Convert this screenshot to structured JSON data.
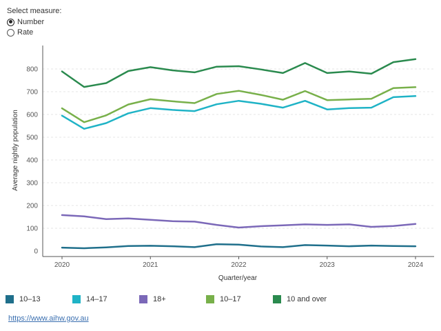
{
  "controls": {
    "title": "Select measure:",
    "options": [
      {
        "label": "Number",
        "checked": true
      },
      {
        "label": "Rate",
        "checked": false
      }
    ]
  },
  "chart_data": {
    "type": "line",
    "title": "",
    "xlabel": "Quarter/year",
    "ylabel": "Average nightly population",
    "xlim": [
      2019.75,
      2024.1
    ],
    "ylim": [
      0,
      900
    ],
    "yticks": [
      0,
      100,
      200,
      300,
      400,
      500,
      600,
      700,
      800
    ],
    "xticks": [
      2020,
      2021,
      2022,
      2023,
      2024
    ],
    "x": [
      2020.0,
      2020.25,
      2020.5,
      2020.75,
      2021.0,
      2021.25,
      2021.5,
      2021.75,
      2022.0,
      2022.25,
      2022.5,
      2022.75,
      2023.0,
      2023.25,
      2023.5,
      2023.75,
      2024.0
    ],
    "series": [
      {
        "name": "10–13",
        "color": "#1f6f8b",
        "values": [
          15,
          12,
          16,
          22,
          23,
          21,
          17,
          30,
          28,
          20,
          17,
          26,
          24,
          21,
          24,
          22,
          21
        ]
      },
      {
        "name": "14–17",
        "color": "#1fb3c6",
        "values": [
          595,
          537,
          562,
          605,
          628,
          620,
          615,
          645,
          660,
          647,
          630,
          660,
          622,
          628,
          630,
          676,
          681
        ]
      },
      {
        "name": "18+",
        "color": "#7b68b8",
        "values": [
          158,
          152,
          140,
          143,
          137,
          131,
          129,
          115,
          103,
          109,
          113,
          117,
          115,
          117,
          106,
          110,
          119
        ]
      },
      {
        "name": "10–17",
        "color": "#78b04a",
        "values": [
          627,
          566,
          596,
          644,
          667,
          658,
          650,
          690,
          704,
          686,
          665,
          703,
          663,
          666,
          669,
          716,
          720
        ]
      },
      {
        "name": "10 and over",
        "color": "#2a8a4e",
        "values": [
          789,
          721,
          738,
          791,
          808,
          794,
          785,
          810,
          812,
          798,
          782,
          826,
          782,
          789,
          779,
          830,
          843
        ]
      }
    ]
  },
  "legend": [
    "10–13",
    "14–17",
    "18+",
    "10–17",
    "10 and over"
  ],
  "source": {
    "text": "https://www.aihw.gov.au"
  }
}
